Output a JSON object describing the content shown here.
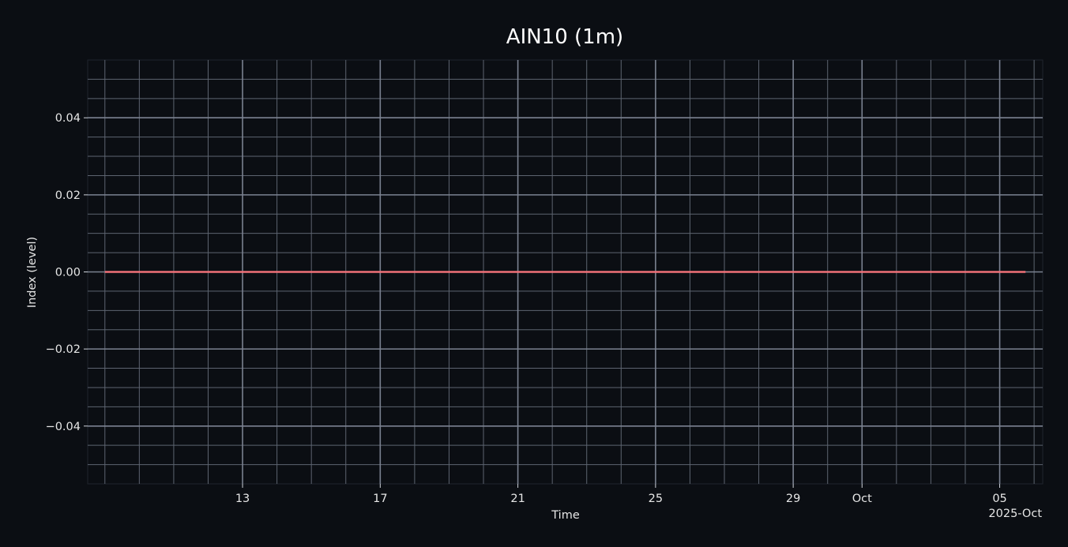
{
  "chart_data": {
    "type": "line",
    "title": "AIN10 (1m)",
    "xlabel": "Time",
    "ylabel": "Index (level)",
    "x_range": [
      "2025-09-08T12:00",
      "2025-10-06T06:00"
    ],
    "ylim": [
      -0.055,
      0.055
    ],
    "y_ticks": [
      -0.04,
      -0.02,
      0.0,
      0.02,
      0.04
    ],
    "y_tick_labels": [
      "−0.04",
      "−0.02",
      "0.00",
      "0.02",
      "0.04"
    ],
    "x_ticks": [
      "2025-09-13",
      "2025-09-17",
      "2025-09-21",
      "2025-09-25",
      "2025-09-29",
      "2025-10-01",
      "2025-10-05"
    ],
    "x_tick_labels": [
      "13",
      "17",
      "21",
      "25",
      "29",
      "Oct",
      "05"
    ],
    "x_offset_label": "2025-Oct",
    "grid": true,
    "series": [
      {
        "color": "#f07178",
        "points": [
          {
            "x": "2025-09-09T00:00",
            "y": 0.0
          },
          {
            "x": "2025-10-05T18:00",
            "y": 0.0
          }
        ]
      }
    ]
  }
}
